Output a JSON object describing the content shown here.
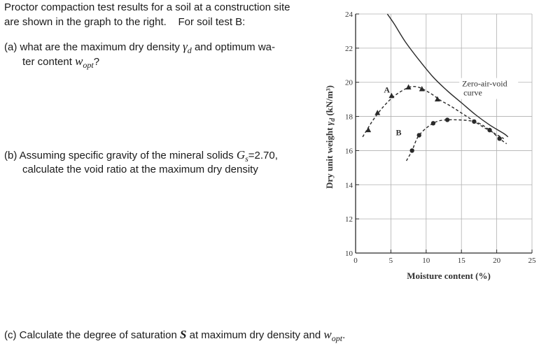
{
  "problem": {
    "intro_line1": "Proctor compaction test results for a soil at a construction site",
    "intro_line2": "are shown in the graph to the right.",
    "intro_test": "For soil test B:",
    "a_prefix": "(a) what are the maximum dry density",
    "a_gamma": "γ",
    "a_gamma_sub": "d",
    "a_mid": "and optimum wa-",
    "a_line2": "ter content",
    "a_w": "w",
    "a_w_sub": "opt",
    "a_end": "?",
    "b_prefix": "(b) Assuming specific gravity of the mineral solids",
    "b_g": "G",
    "b_g_sub": "s",
    "b_value": "=2.70,",
    "b_line2": "calculate the void ratio at the maximum dry density",
    "c_prefix": "(c)  Calculate the degree of saturation",
    "c_s": "S",
    "c_mid": "at maximum dry density and",
    "c_w": "w",
    "c_w_sub": "opt",
    "c_end": "."
  },
  "chart_data": {
    "type": "line",
    "xlabel": "Moisture content (%)",
    "ylabel_text": "Dry unit weight",
    "ylabel_symbol": "γ",
    "ylabel_sub": "d",
    "ylabel_unit": "(kN/m³)",
    "xlim": [
      0,
      25
    ],
    "ylim": [
      10,
      24
    ],
    "x_ticks": [
      "0",
      "5",
      "10",
      "15",
      "20",
      "25"
    ],
    "y_ticks": [
      "10",
      "12",
      "14",
      "16",
      "18",
      "20",
      "22",
      "24"
    ],
    "grid": true,
    "series": [
      {
        "name": "A",
        "marker": "triangle",
        "x": [
          1.8,
          3.1,
          5.1,
          7.5,
          9.4,
          11.6
        ],
        "y": [
          17.2,
          18.2,
          19.2,
          19.7,
          19.6,
          19.0
        ],
        "curve_x": [
          1.0,
          2.5,
          4.0,
          5.5,
          7.0,
          8.0,
          9.0,
          10.0,
          11.0,
          12.0,
          13.5,
          15.0,
          16.5,
          18.0,
          19.5,
          21.0
        ],
        "curve_y": [
          16.8,
          17.8,
          18.6,
          19.2,
          19.6,
          19.75,
          19.7,
          19.5,
          19.25,
          18.95,
          18.6,
          18.2,
          17.8,
          17.4,
          17.05,
          16.7
        ]
      },
      {
        "name": "B",
        "marker": "circle",
        "x": [
          8.0,
          9.0,
          11.0,
          13.0,
          16.8,
          19.0,
          20.4
        ],
        "y": [
          16.0,
          16.9,
          17.6,
          17.8,
          17.7,
          17.2,
          16.7
        ]
      },
      {
        "name": "Zero-air-void curve",
        "label_line1": "Zero-air-void",
        "label_line2": "curve",
        "marker": "none",
        "x": [
          4.5,
          5.5,
          7.0,
          9.0,
          11.0,
          13.0,
          15.0,
          17.0,
          19.0,
          21.0,
          21.6
        ],
        "y": [
          24.0,
          23.4,
          22.4,
          21.3,
          20.3,
          19.5,
          18.8,
          18.1,
          17.5,
          17.0,
          16.8
        ]
      }
    ]
  },
  "colors": {
    "text": "#1a1a1a",
    "plot": "#2a2a2a",
    "grid": "#b0b0b0"
  }
}
